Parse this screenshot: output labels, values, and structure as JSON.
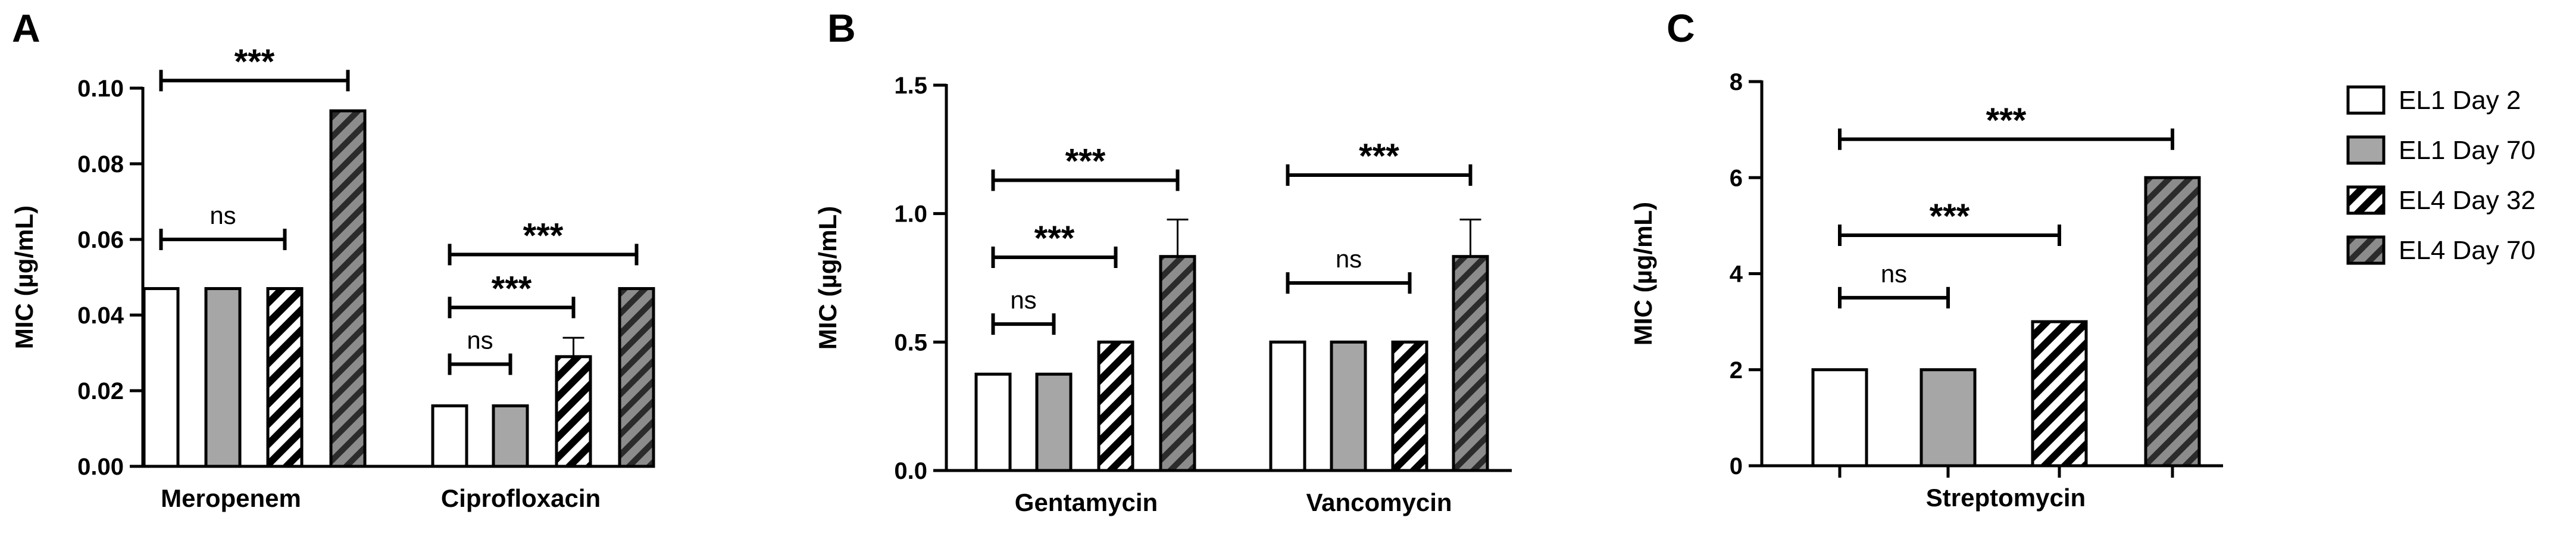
{
  "colors": {
    "white_fill": "#ffffff",
    "grey_fill": "#a6a6a6",
    "hatch_dark": "#000000",
    "hatch_bg_dark": "#8c8c8c",
    "outline": "#000000"
  },
  "legend": [
    {
      "label": "EL1 Day 2",
      "style": "white"
    },
    {
      "label": "EL1 Day 70",
      "style": "grey"
    },
    {
      "label": "EL4 Day 32",
      "style": "hatch-white"
    },
    {
      "label": "EL4 Day 70",
      "style": "hatch-grey"
    }
  ],
  "chart_data": [
    {
      "panel": "A",
      "type": "bar",
      "ylabel": "MIC (µg/mL)",
      "ylim": [
        0,
        0.1
      ],
      "yticks": [
        "0.00",
        "0.02",
        "0.04",
        "0.06",
        "0.08",
        "0.10"
      ],
      "ytick_values": [
        0,
        0.02,
        0.04,
        0.06,
        0.08,
        0.1
      ],
      "categories": [
        "Meropenem",
        "Ciprofloxacin"
      ],
      "series": [
        {
          "name": "EL1 Day 2",
          "values": [
            0.047,
            0.016
          ]
        },
        {
          "name": "EL1 Day 70",
          "values": [
            0.047,
            0.016
          ]
        },
        {
          "name": "EL4 Day 32",
          "values": [
            0.047,
            0.029
          ],
          "errors": [
            0,
            0.005
          ]
        },
        {
          "name": "EL4 Day 70",
          "values": [
            0.094,
            0.047
          ]
        }
      ],
      "significance": [
        {
          "label": "***",
          "category": 0,
          "from": 0,
          "to": 3,
          "y": 0.102
        },
        {
          "label": "ns",
          "category": 0,
          "from": 0,
          "to": 2,
          "y": 0.06
        },
        {
          "label": "***",
          "category": 1,
          "from": 0,
          "to": 3,
          "y": 0.056
        },
        {
          "label": "***",
          "category": 1,
          "from": 0,
          "to": 2,
          "y": 0.042
        },
        {
          "label": "ns",
          "category": 1,
          "from": 0,
          "to": 1,
          "y": 0.027
        }
      ]
    },
    {
      "panel": "B",
      "type": "bar",
      "ylabel": "MIC (µg/mL)",
      "ylim": [
        0,
        1.5
      ],
      "yticks": [
        "0.0",
        "0.5",
        "1.0",
        "1.5"
      ],
      "ytick_values": [
        0,
        0.5,
        1.0,
        1.5
      ],
      "categories": [
        "Gentamycin",
        "Vancomycin"
      ],
      "series": [
        {
          "name": "EL1 Day 2",
          "values": [
            0.375,
            0.5
          ]
        },
        {
          "name": "EL1 Day 70",
          "values": [
            0.375,
            0.5
          ]
        },
        {
          "name": "EL4 Day 32",
          "values": [
            0.5,
            0.5
          ]
        },
        {
          "name": "EL4 Day 70",
          "values": [
            0.833,
            0.833
          ],
          "errors": [
            0.144,
            0.144
          ]
        }
      ],
      "significance": [
        {
          "label": "***",
          "category": 0,
          "from": 0,
          "to": 3,
          "y": 1.13
        },
        {
          "label": "***",
          "category": 0,
          "from": 0,
          "to": 2,
          "y": 0.83
        },
        {
          "label": "ns",
          "category": 0,
          "from": 0,
          "to": 1,
          "y": 0.57
        },
        {
          "label": "***",
          "category": 1,
          "from": 0,
          "to": 3,
          "y": 1.15
        },
        {
          "label": "ns",
          "category": 1,
          "from": 0,
          "to": 2,
          "y": 0.73
        }
      ]
    },
    {
      "panel": "C",
      "type": "bar",
      "ylabel": "MIC (µg/mL)",
      "ylim": [
        0,
        8
      ],
      "yticks": [
        "0",
        "2",
        "4",
        "6",
        "8"
      ],
      "ytick_values": [
        0,
        2,
        4,
        6,
        8
      ],
      "categories": [
        "Streptomycin"
      ],
      "series": [
        {
          "name": "EL1 Day 2",
          "values": [
            2
          ]
        },
        {
          "name": "EL1 Day 70",
          "values": [
            2
          ]
        },
        {
          "name": "EL4 Day 32",
          "values": [
            3
          ]
        },
        {
          "name": "EL4 Day 70",
          "values": [
            6
          ]
        }
      ],
      "significance": [
        {
          "label": "***",
          "category": 0,
          "from": 0,
          "to": 3,
          "y": 6.8
        },
        {
          "label": "***",
          "category": 0,
          "from": 0,
          "to": 2,
          "y": 4.8
        },
        {
          "label": "ns",
          "category": 0,
          "from": 0,
          "to": 1,
          "y": 3.5
        }
      ]
    }
  ]
}
